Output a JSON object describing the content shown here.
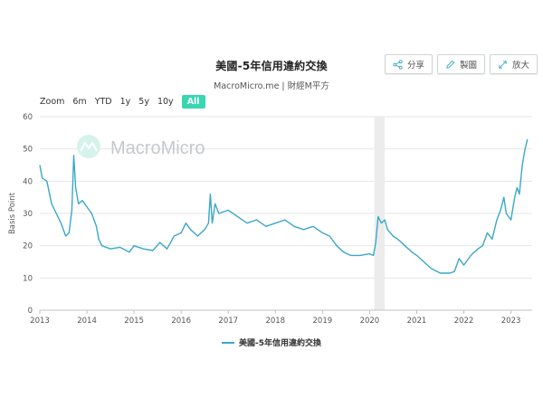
{
  "header": {
    "title": "美國-5年信用違約交換",
    "subtitle": "MacroMicro.me | 財經M平方"
  },
  "actions": [
    {
      "label": "分享",
      "icon": "share-icon"
    },
    {
      "label": "製圖",
      "icon": "pencil-icon"
    },
    {
      "label": "放大",
      "icon": "expand-icon"
    }
  ],
  "zoom": {
    "label": "Zoom",
    "options": [
      "6m",
      "YTD",
      "1y",
      "5y",
      "10y",
      "All"
    ],
    "selected": "All",
    "selected_color": "#38d6b1"
  },
  "watermark": "MacroMicro",
  "chart_data": {
    "type": "line",
    "ylabel": "Basis Point",
    "ylim": [
      0,
      60
    ],
    "yticks": [
      0,
      10,
      20,
      30,
      40,
      50,
      60
    ],
    "xlim": [
      2013.0,
      2023.45
    ],
    "xticks": [
      "2013",
      "2014",
      "2015",
      "2016",
      "2017",
      "2018",
      "2019",
      "2020",
      "2021",
      "2022",
      "2023"
    ],
    "grid": true,
    "legend_position": "bottom",
    "shaded_region": [
      2020.1,
      2020.32
    ],
    "series": [
      {
        "name": "美國-5年信用違約交換",
        "color": "#3aa8c8",
        "points": [
          [
            2013.0,
            45
          ],
          [
            2013.05,
            41
          ],
          [
            2013.15,
            40
          ],
          [
            2013.25,
            33
          ],
          [
            2013.35,
            30
          ],
          [
            2013.45,
            27
          ],
          [
            2013.55,
            23
          ],
          [
            2013.62,
            24
          ],
          [
            2013.68,
            31
          ],
          [
            2013.72,
            48
          ],
          [
            2013.76,
            38
          ],
          [
            2013.82,
            33
          ],
          [
            2013.9,
            34
          ],
          [
            2014.0,
            32
          ],
          [
            2014.1,
            30
          ],
          [
            2014.2,
            26
          ],
          [
            2014.25,
            22
          ],
          [
            2014.32,
            20
          ],
          [
            2014.5,
            19
          ],
          [
            2014.7,
            19.5
          ],
          [
            2014.9,
            18
          ],
          [
            2015.0,
            20
          ],
          [
            2015.2,
            19
          ],
          [
            2015.4,
            18.5
          ],
          [
            2015.55,
            21
          ],
          [
            2015.7,
            19
          ],
          [
            2015.85,
            23
          ],
          [
            2016.0,
            24
          ],
          [
            2016.1,
            27
          ],
          [
            2016.2,
            25
          ],
          [
            2016.35,
            23
          ],
          [
            2016.5,
            25
          ],
          [
            2016.58,
            27
          ],
          [
            2016.62,
            36
          ],
          [
            2016.66,
            27
          ],
          [
            2016.72,
            33
          ],
          [
            2016.8,
            30
          ],
          [
            2017.0,
            31
          ],
          [
            2017.2,
            29
          ],
          [
            2017.4,
            27
          ],
          [
            2017.6,
            28
          ],
          [
            2017.8,
            26
          ],
          [
            2018.0,
            27
          ],
          [
            2018.2,
            28
          ],
          [
            2018.4,
            26
          ],
          [
            2018.6,
            25
          ],
          [
            2018.8,
            26
          ],
          [
            2019.0,
            24
          ],
          [
            2019.15,
            23
          ],
          [
            2019.3,
            20
          ],
          [
            2019.45,
            18
          ],
          [
            2019.6,
            17
          ],
          [
            2019.8,
            17
          ],
          [
            2020.0,
            17.5
          ],
          [
            2020.08,
            17
          ],
          [
            2020.13,
            21
          ],
          [
            2020.18,
            29
          ],
          [
            2020.25,
            27
          ],
          [
            2020.32,
            28
          ],
          [
            2020.38,
            25
          ],
          [
            2020.5,
            23
          ],
          [
            2020.6,
            22
          ],
          [
            2020.75,
            20
          ],
          [
            2020.9,
            18
          ],
          [
            2021.0,
            17
          ],
          [
            2021.15,
            15
          ],
          [
            2021.3,
            13
          ],
          [
            2021.5,
            11.5
          ],
          [
            2021.7,
            11.5
          ],
          [
            2021.8,
            12
          ],
          [
            2021.9,
            16
          ],
          [
            2022.0,
            14
          ],
          [
            2022.15,
            17
          ],
          [
            2022.3,
            19
          ],
          [
            2022.4,
            20
          ],
          [
            2022.5,
            24
          ],
          [
            2022.6,
            22
          ],
          [
            2022.7,
            28
          ],
          [
            2022.78,
            31
          ],
          [
            2022.85,
            35
          ],
          [
            2022.9,
            30
          ],
          [
            2023.0,
            28
          ],
          [
            2023.08,
            35
          ],
          [
            2023.13,
            38
          ],
          [
            2023.18,
            36
          ],
          [
            2023.24,
            45
          ],
          [
            2023.3,
            50
          ],
          [
            2023.35,
            53
          ]
        ]
      }
    ]
  }
}
